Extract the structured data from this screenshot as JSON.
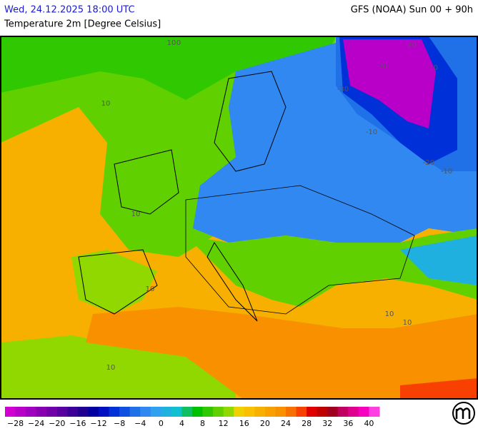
{
  "header": {
    "valid_time": "Wed, 24.12.2025 18:00 UTC",
    "model_run": "GFS (NOAA) Sun 00 + 90h",
    "parameter": "Temperature 2m [Degree Celsius]"
  },
  "map": {
    "contour_labels": [
      "10",
      "10",
      "10",
      "10",
      "10",
      "10",
      "10",
      "-10",
      "-10",
      "-10",
      "-20",
      "-20",
      "-30",
      "-30",
      "0"
    ]
  },
  "legend": {
    "labels": [
      "−28",
      "−24",
      "−20",
      "−16",
      "−12",
      "−8",
      "−4",
      "0",
      "4",
      "8",
      "12",
      "16",
      "20",
      "24",
      "28",
      "32",
      "36",
      "40"
    ],
    "colors": [
      "#d000d0",
      "#b800c8",
      "#a000c0",
      "#8800b0",
      "#7000a8",
      "#5800a0",
      "#3c0098",
      "#200090",
      "#0000a0",
      "#0010c0",
      "#0030d8",
      "#1050e0",
      "#2070e8",
      "#3088f0",
      "#30a0f0",
      "#20b0e0",
      "#10c0d0",
      "#10c060",
      "#00c000",
      "#30c800",
      "#60d000",
      "#90d800",
      "#f0d000",
      "#f8c000",
      "#f8b000",
      "#f8a000",
      "#f89000",
      "#f87000",
      "#f84000",
      "#e00000",
      "#c00000",
      "#a00020",
      "#c00060",
      "#e00090",
      "#f800c0",
      "#ff40e0"
    ]
  }
}
